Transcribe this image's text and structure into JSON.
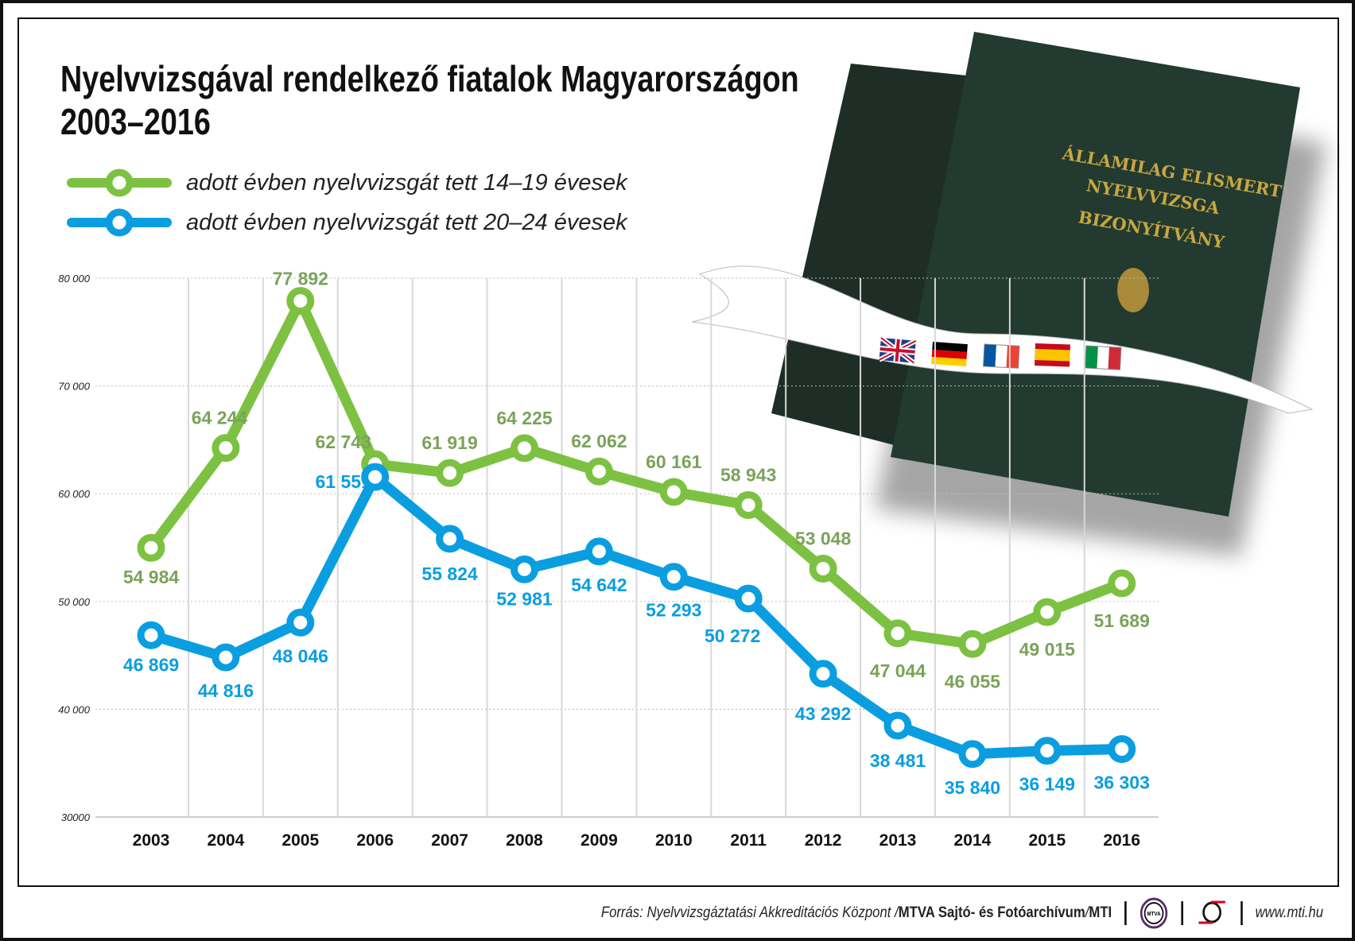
{
  "title_line1": "Nyelvvizsgával rendelkező fiatalok Magyarországon",
  "title_line2": "2003–2016",
  "colors": {
    "green": "#7dc142",
    "green_label": "#7aa35a",
    "blue": "#0a9ee0",
    "blue_label": "#0a9ee0"
  },
  "photo": {
    "book_text": [
      "ÁLLAMILAG ELISMERT",
      "NYELVVIZSGA",
      "BIZONYÍTVÁNY"
    ],
    "flags": [
      "uk",
      "germany",
      "france",
      "spain",
      "italy"
    ]
  },
  "chart_data": {
    "type": "line",
    "x": [
      "2003",
      "2004",
      "2005",
      "2006",
      "2007",
      "2008",
      "2009",
      "2010",
      "2011",
      "2012",
      "2013",
      "2014",
      "2015",
      "2016"
    ],
    "ylim": [
      30000,
      80000
    ],
    "yticks": [
      "30000",
      "40 000",
      "50 000",
      "60 000",
      "70 000",
      "80 000"
    ],
    "grid": true,
    "legend_position": "top-left",
    "series": [
      {
        "name": "adott évben nyelvvizsgát tett 14–19 évesek",
        "color": "#7dc142",
        "values": [
          54984,
          64244,
          77892,
          62743,
          61919,
          64225,
          62062,
          60161,
          58943,
          53048,
          47044,
          46055,
          49015,
          51689
        ],
        "labels": [
          "54 984",
          "64 244",
          "77 892",
          "62 743",
          "61 919",
          "64 225",
          "62 062",
          "60 161",
          "58 943",
          "53 048",
          "47 044",
          "46 055",
          "49 015",
          "51 689"
        ]
      },
      {
        "name": "adott évben nyelvvizsgát tett 20–24 évesek",
        "color": "#0a9ee0",
        "values": [
          46869,
          44816,
          48046,
          61551,
          55824,
          52981,
          54642,
          52293,
          50272,
          43292,
          38481,
          35840,
          36149,
          36303
        ],
        "labels": [
          "46 869",
          "44 816",
          "48 046",
          "61 551",
          "55 824",
          "52 981",
          "54 642",
          "52 293",
          "50 272",
          "43 292",
          "38 481",
          "35 840",
          "36 149",
          "36 303"
        ]
      }
    ]
  },
  "footer": {
    "source_prefix": "Forrás: Nyelvvizsgáztatási Akkreditációs Központ / ",
    "source_bold": "MTVA Sajtó- és Fotóarchívum",
    "source_sep": " / ",
    "source_mti": "MTI",
    "logo_mtva": "MTVA",
    "url": "www.mti.hu"
  }
}
